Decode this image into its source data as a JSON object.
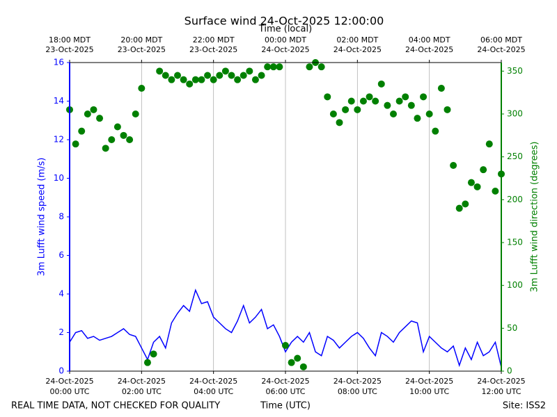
{
  "chart_data": {
    "type": "line_scatter",
    "title": "Surface wind 24-Oct-2025 12:00:00",
    "top_axis_label": "Time (local)",
    "x_label": "Time (UTC)",
    "y_label": "3m Lufft wind speed (m/s)",
    "y2_label": "3m Lufft wind direction (degrees)",
    "footer_left": "REAL TIME DATA, NOT CHECKED FOR QUALITY",
    "footer_right": "Site: ISS2",
    "grid": true,
    "xlim": [
      "2025-10-24T00:00",
      "2025-10-24T12:00"
    ],
    "xticks": [
      {
        "value": "2025-10-24T00:00",
        "label": [
          "24-Oct-2025",
          "00:00 UTC"
        ]
      },
      {
        "value": "2025-10-24T02:00",
        "label": [
          "24-Oct-2025",
          "02:00 UTC"
        ]
      },
      {
        "value": "2025-10-24T04:00",
        "label": [
          "24-Oct-2025",
          "04:00 UTC"
        ]
      },
      {
        "value": "2025-10-24T06:00",
        "label": [
          "24-Oct-2025",
          "06:00 UTC"
        ]
      },
      {
        "value": "2025-10-24T08:00",
        "label": [
          "24-Oct-2025",
          "08:00 UTC"
        ]
      },
      {
        "value": "2025-10-24T10:00",
        "label": [
          "24-Oct-2025",
          "10:00 UTC"
        ]
      },
      {
        "value": "2025-10-24T12:00",
        "label": [
          "24-Oct-2025",
          "12:00 UTC"
        ]
      }
    ],
    "top_xticks": [
      {
        "value": "2025-10-24T00:00",
        "label": [
          "18:00 MDT",
          "23-Oct-2025"
        ]
      },
      {
        "value": "2025-10-24T02:00",
        "label": [
          "20:00 MDT",
          "23-Oct-2025"
        ]
      },
      {
        "value": "2025-10-24T04:00",
        "label": [
          "22:00 MDT",
          "23-Oct-2025"
        ]
      },
      {
        "value": "2025-10-24T06:00",
        "label": [
          "00:00 MDT",
          "24-Oct-2025"
        ]
      },
      {
        "value": "2025-10-24T08:00",
        "label": [
          "02:00 MDT",
          "24-Oct-2025"
        ]
      },
      {
        "value": "2025-10-24T10:00",
        "label": [
          "04:00 MDT",
          "24-Oct-2025"
        ]
      },
      {
        "value": "2025-10-24T12:00",
        "label": [
          "06:00 MDT",
          "24-Oct-2025"
        ]
      }
    ],
    "ylim": [
      0,
      16
    ],
    "yticks": [
      0,
      2,
      4,
      6,
      8,
      10,
      12,
      14,
      16
    ],
    "y2lim": [
      0,
      360
    ],
    "y2ticks": [
      0,
      50,
      100,
      150,
      200,
      250,
      300,
      350
    ],
    "x": [
      "2025-10-24T00:00",
      "2025-10-24T00:10",
      "2025-10-24T00:20",
      "2025-10-24T00:30",
      "2025-10-24T00:40",
      "2025-10-24T00:50",
      "2025-10-24T01:00",
      "2025-10-24T01:10",
      "2025-10-24T01:20",
      "2025-10-24T01:30",
      "2025-10-24T01:40",
      "2025-10-24T01:50",
      "2025-10-24T02:00",
      "2025-10-24T02:10",
      "2025-10-24T02:20",
      "2025-10-24T02:30",
      "2025-10-24T02:40",
      "2025-10-24T02:50",
      "2025-10-24T03:00",
      "2025-10-24T03:10",
      "2025-10-24T03:20",
      "2025-10-24T03:30",
      "2025-10-24T03:40",
      "2025-10-24T03:50",
      "2025-10-24T04:00",
      "2025-10-24T04:10",
      "2025-10-24T04:20",
      "2025-10-24T04:30",
      "2025-10-24T04:40",
      "2025-10-24T04:50",
      "2025-10-24T05:00",
      "2025-10-24T05:10",
      "2025-10-24T05:20",
      "2025-10-24T05:30",
      "2025-10-24T05:40",
      "2025-10-24T05:50",
      "2025-10-24T06:00",
      "2025-10-24T06:10",
      "2025-10-24T06:20",
      "2025-10-24T06:30",
      "2025-10-24T06:40",
      "2025-10-24T06:50",
      "2025-10-24T07:00",
      "2025-10-24T07:10",
      "2025-10-24T07:20",
      "2025-10-24T07:30",
      "2025-10-24T07:40",
      "2025-10-24T07:50",
      "2025-10-24T08:00",
      "2025-10-24T08:10",
      "2025-10-24T08:20",
      "2025-10-24T08:30",
      "2025-10-24T08:40",
      "2025-10-24T08:50",
      "2025-10-24T09:00",
      "2025-10-24T09:10",
      "2025-10-24T09:20",
      "2025-10-24T09:30",
      "2025-10-24T09:40",
      "2025-10-24T09:50",
      "2025-10-24T10:00",
      "2025-10-24T10:10",
      "2025-10-24T10:20",
      "2025-10-24T10:30",
      "2025-10-24T10:40",
      "2025-10-24T10:50",
      "2025-10-24T11:00",
      "2025-10-24T11:10",
      "2025-10-24T11:20",
      "2025-10-24T11:30",
      "2025-10-24T11:40",
      "2025-10-24T11:50",
      "2025-10-24T12:00"
    ],
    "series": [
      {
        "name": "3m Lufft wind speed (m/s)",
        "color": "#0000ff",
        "kind": "line",
        "axis": "y",
        "values": [
          1.5,
          2.0,
          2.1,
          1.7,
          1.8,
          1.6,
          1.7,
          1.8,
          2.0,
          2.2,
          1.9,
          1.8,
          1.2,
          0.6,
          1.5,
          1.8,
          1.2,
          2.5,
          3.0,
          3.4,
          3.1,
          4.2,
          3.5,
          3.6,
          2.8,
          2.5,
          2.2,
          2.0,
          2.6,
          3.4,
          2.5,
          2.8,
          3.2,
          2.2,
          2.4,
          1.8,
          1.0,
          1.5,
          1.8,
          1.5,
          2.0,
          1.0,
          0.8,
          1.8,
          1.6,
          1.2,
          1.5,
          1.8,
          2.0,
          1.7,
          1.2,
          0.8,
          2.0,
          1.8,
          1.5,
          2.0,
          2.3,
          2.6,
          2.5,
          1.0,
          1.8,
          1.5,
          1.2,
          1.0,
          1.3,
          0.3,
          1.2,
          0.6,
          1.5,
          0.8,
          1.0,
          1.5,
          0.2
        ]
      },
      {
        "name": "3m Lufft wind direction (degrees)",
        "color": "#008000",
        "kind": "scatter",
        "axis": "y2",
        "values": [
          305,
          265,
          280,
          300,
          305,
          295,
          260,
          270,
          285,
          275,
          270,
          300,
          330,
          10,
          20,
          350,
          345,
          340,
          345,
          340,
          335,
          340,
          340,
          345,
          340,
          345,
          350,
          345,
          340,
          345,
          350,
          340,
          345,
          355,
          355,
          355,
          30,
          10,
          15,
          5,
          355,
          360,
          355,
          320,
          300,
          290,
          305,
          315,
          305,
          315,
          320,
          315,
          335,
          310,
          300,
          315,
          320,
          310,
          295,
          320,
          300,
          280,
          330,
          305,
          240,
          190,
          195,
          220,
          215,
          235,
          265,
          210,
          230
        ]
      }
    ]
  }
}
